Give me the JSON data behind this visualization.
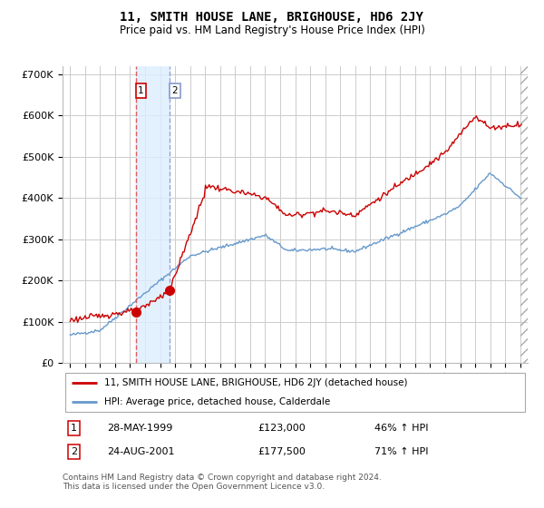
{
  "title": "11, SMITH HOUSE LANE, BRIGHOUSE, HD6 2JY",
  "subtitle": "Price paid vs. HM Land Registry's House Price Index (HPI)",
  "legend_label_red": "11, SMITH HOUSE LANE, BRIGHOUSE, HD6 2JY (detached house)",
  "legend_label_blue": "HPI: Average price, detached house, Calderdale",
  "transactions": [
    {
      "label": "1",
      "date": "28-MAY-1999",
      "price": 123000,
      "year": 1999.38,
      "hpi_pct": "46% ↑ HPI"
    },
    {
      "label": "2",
      "date": "24-AUG-2001",
      "price": 177500,
      "year": 2001.64,
      "hpi_pct": "71% ↑ HPI"
    }
  ],
  "footnote": "Contains HM Land Registry data © Crown copyright and database right 2024.\nThis data is licensed under the Open Government Licence v3.0.",
  "ylim": [
    0,
    720000
  ],
  "yticks": [
    0,
    100000,
    200000,
    300000,
    400000,
    500000,
    600000,
    700000
  ],
  "ytick_labels": [
    "£0",
    "£100K",
    "£200K",
    "£300K",
    "£400K",
    "£500K",
    "£600K",
    "£700K"
  ],
  "xlim_start": 1994.5,
  "xlim_end": 2025.5,
  "red_color": "#cc0000",
  "blue_color": "#6699cc",
  "vline1_color": "#dd4444",
  "vline2_color": "#8899cc",
  "shade_color": "#ddeeff",
  "background_color": "#ffffff",
  "grid_color": "#cccccc"
}
